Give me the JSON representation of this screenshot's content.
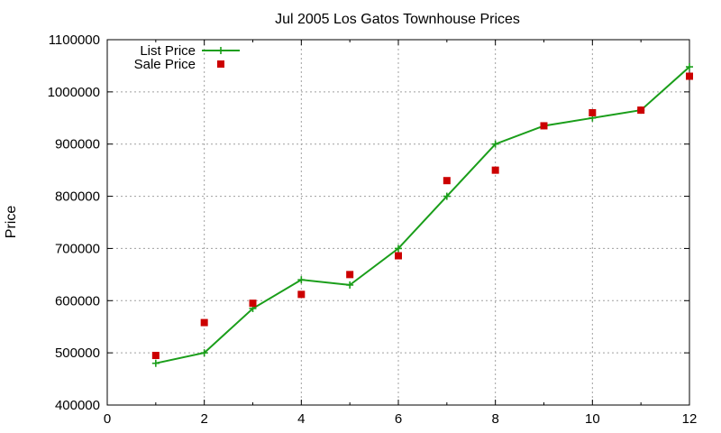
{
  "chart_data": {
    "type": "line",
    "title": "Jul 2005 Los Gatos Townhouse Prices",
    "xlabel": "",
    "ylabel": "Price",
    "xlim": [
      0,
      12
    ],
    "ylim": [
      400000,
      1100000
    ],
    "x_ticks": [
      0,
      2,
      4,
      6,
      8,
      10,
      12
    ],
    "y_ticks": [
      400000,
      500000,
      600000,
      700000,
      800000,
      900000,
      1000000,
      1100000
    ],
    "grid": true,
    "legend_position": "top-left",
    "series": [
      {
        "name": "List Price",
        "style": "line-with-plus-markers",
        "color": "#1a9e1a",
        "x": [
          1,
          2,
          3,
          4,
          5,
          6,
          7,
          8,
          9,
          10,
          11,
          12
        ],
        "y": [
          480000,
          500000,
          585000,
          640000,
          630000,
          700000,
          800000,
          900000,
          935000,
          950000,
          965000,
          1048000
        ]
      },
      {
        "name": "Sale Price",
        "style": "square-markers",
        "color": "#cc0000",
        "x": [
          1,
          2,
          3,
          4,
          5,
          6,
          7,
          8,
          9,
          10,
          11,
          12
        ],
        "y": [
          495000,
          558000,
          595000,
          612000,
          650000,
          686000,
          830000,
          850000,
          935000,
          960000,
          965000,
          1030000
        ]
      }
    ]
  }
}
